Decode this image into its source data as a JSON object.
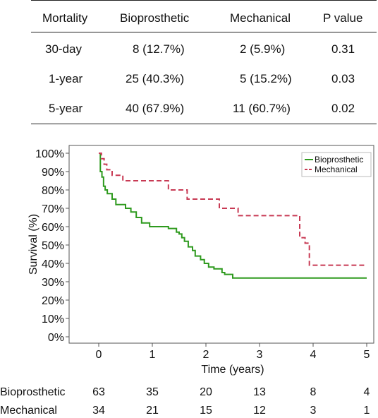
{
  "table": {
    "headers": [
      "Mortality",
      "Bioprosthetic",
      "Mechanical",
      "P value"
    ],
    "rows": [
      [
        "30-day",
        "8 (12.7%)",
        "2 (5.9%)",
        "0.31"
      ],
      [
        "1-year",
        "25 (40.3%)",
        "5 (15.2%)",
        "0.03"
      ],
      [
        "5-year",
        "40 (67.9%)",
        "11 (60.7%)",
        "0.02"
      ]
    ]
  },
  "chart_data": {
    "type": "line",
    "xlabel": "Time (years)",
    "ylabel": "Survival (%)",
    "xlim": [
      0,
      5
    ],
    "ylim": [
      0,
      100
    ],
    "x_ticks": [
      0,
      1,
      2,
      3,
      4,
      5
    ],
    "y_ticks": [
      0,
      10,
      20,
      30,
      40,
      50,
      60,
      70,
      80,
      90,
      100
    ],
    "y_tick_suffix": "%",
    "grid": false,
    "legend": "top-right",
    "series": [
      {
        "name": "Bioprosthetic",
        "color": "#2e9a1e",
        "style": "solid",
        "points": [
          [
            0,
            100
          ],
          [
            0.03,
            90
          ],
          [
            0.06,
            87
          ],
          [
            0.09,
            82
          ],
          [
            0.12,
            80
          ],
          [
            0.16,
            78
          ],
          [
            0.25,
            75
          ],
          [
            0.32,
            72
          ],
          [
            0.5,
            70
          ],
          [
            0.6,
            68
          ],
          [
            0.7,
            65
          ],
          [
            0.8,
            62
          ],
          [
            0.95,
            60
          ],
          [
            1.2,
            60
          ],
          [
            1.3,
            59
          ],
          [
            1.45,
            57
          ],
          [
            1.5,
            56
          ],
          [
            1.55,
            54
          ],
          [
            1.6,
            52
          ],
          [
            1.67,
            49
          ],
          [
            1.75,
            47
          ],
          [
            1.8,
            44
          ],
          [
            1.9,
            42
          ],
          [
            1.97,
            40
          ],
          [
            2.05,
            38
          ],
          [
            2.15,
            37
          ],
          [
            2.3,
            35
          ],
          [
            2.35,
            34
          ],
          [
            2.5,
            32
          ],
          [
            5,
            32
          ]
        ]
      },
      {
        "name": "Mechanical",
        "color": "#c83a54",
        "style": "dashed",
        "points": [
          [
            0,
            100
          ],
          [
            0.05,
            97
          ],
          [
            0.1,
            94
          ],
          [
            0.15,
            91
          ],
          [
            0.25,
            88
          ],
          [
            0.45,
            85
          ],
          [
            1.3,
            80
          ],
          [
            1.65,
            75
          ],
          [
            2.25,
            70
          ],
          [
            2.6,
            66
          ],
          [
            3.75,
            54
          ],
          [
            3.85,
            51
          ],
          [
            3.93,
            39
          ],
          [
            5,
            39
          ]
        ]
      }
    ]
  },
  "risk_table": {
    "rows": [
      {
        "label": "Bioprosthetic",
        "values": [
          "63",
          "35",
          "20",
          "13",
          "8",
          "4"
        ]
      },
      {
        "label": "Mechanical",
        "values": [
          "34",
          "21",
          "15",
          "12",
          "3",
          "1"
        ]
      }
    ]
  }
}
